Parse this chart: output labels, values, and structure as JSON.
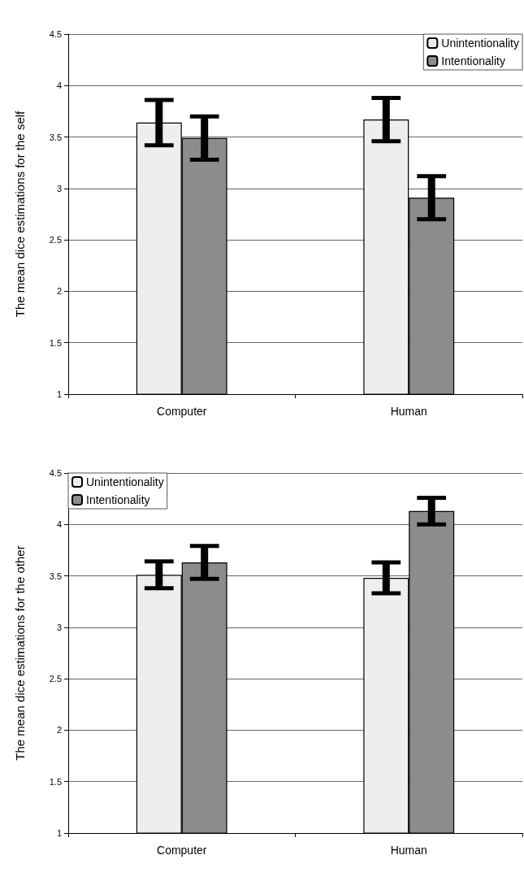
{
  "chart_data": [
    {
      "type": "bar",
      "ylabel": "The mean dice estimations for the self",
      "categories": [
        "Computer",
        "Human"
      ],
      "series": [
        {
          "name": "Unintentionality",
          "color": "#eeeeee",
          "values": [
            3.64,
            3.67
          ],
          "errors": [
            0.22,
            0.21
          ]
        },
        {
          "name": "Intentionality",
          "color": "#8c8c8c",
          "values": [
            3.49,
            2.91
          ],
          "errors": [
            0.21,
            0.21
          ]
        }
      ],
      "ylim": [
        1,
        4.5
      ],
      "yticks": [
        1,
        1.5,
        2,
        2.5,
        3,
        3.5,
        4,
        4.5
      ],
      "grid": "y",
      "legend": "top right"
    },
    {
      "type": "bar",
      "ylabel": "The mean dice estimations for the other",
      "categories": [
        "Computer",
        "Human"
      ],
      "series": [
        {
          "name": "Unintentionality",
          "color": "#eeeeee",
          "values": [
            3.51,
            3.48
          ],
          "errors": [
            0.13,
            0.15
          ]
        },
        {
          "name": "Intentionality",
          "color": "#8c8c8c",
          "values": [
            3.63,
            4.13
          ],
          "errors": [
            0.16,
            0.13
          ]
        }
      ],
      "ylim": [
        1,
        4.5
      ],
      "yticks": [
        1,
        1.5,
        2,
        2.5,
        3,
        3.5,
        4,
        4.5
      ],
      "grid": "y",
      "legend": "top left"
    }
  ]
}
